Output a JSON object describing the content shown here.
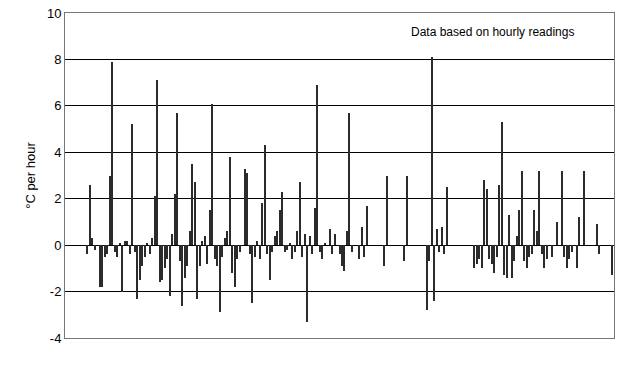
{
  "chart_data": {
    "type": "bar",
    "y_label": "°C per hour",
    "annotation": "Data based on hourly readings",
    "color": "#2b2b2b",
    "grid": true,
    "tick_labels": "y",
    "xlim": [
      0,
      220
    ],
    "ylim": [
      -4,
      10
    ],
    "yticks": [
      -4,
      -2,
      0,
      2,
      4,
      6,
      8,
      10
    ],
    "x": [
      9,
      10,
      11,
      12,
      14,
      15,
      16,
      17,
      18,
      19,
      20,
      21,
      22,
      23,
      24,
      25,
      26,
      27,
      28,
      29,
      30,
      31,
      32,
      33,
      34,
      35,
      36,
      37,
      38,
      39,
      40,
      41,
      42,
      43,
      44,
      45,
      46,
      47,
      48,
      49,
      50,
      51,
      52,
      53,
      54,
      55,
      56,
      57,
      58,
      59,
      60,
      61,
      62,
      63,
      64,
      65,
      66,
      67,
      68,
      69,
      70,
      72,
      73,
      74,
      75,
      76,
      77,
      78,
      79,
      80,
      81,
      82,
      83,
      84,
      85,
      86,
      87,
      88,
      89,
      90,
      91,
      92,
      93,
      94,
      95,
      96,
      97,
      98,
      99,
      100,
      101,
      102,
      103,
      104,
      106,
      107,
      108,
      110,
      111,
      112,
      113,
      114,
      115,
      118,
      119,
      120,
      121,
      128,
      129,
      136,
      137,
      145,
      146,
      147,
      148,
      149,
      150,
      151,
      152,
      153,
      164,
      165,
      166,
      167,
      168,
      169,
      170,
      171,
      172,
      173,
      174,
      175,
      176,
      177,
      178,
      179,
      180,
      181,
      182,
      183,
      184,
      185,
      186,
      187,
      188,
      189,
      190,
      191,
      192,
      193,
      195,
      197,
      199,
      200,
      201,
      202,
      203,
      205,
      206,
      208,
      213,
      214,
      219
    ],
    "values": [
      -0.4,
      2.6,
      0.3,
      -0.2,
      -1.8,
      -1.8,
      -0.5,
      -0.4,
      3.0,
      7.9,
      -0.3,
      -0.5,
      0.1,
      -2.0,
      0.2,
      0.2,
      -0.4,
      5.2,
      -0.3,
      -2.3,
      -1.5,
      -0.9,
      -0.5,
      0.1,
      -0.4,
      0.3,
      2.1,
      7.1,
      -1.6,
      -1.5,
      -1.0,
      -0.6,
      -2.2,
      0.5,
      2.2,
      5.7,
      -0.7,
      -2.6,
      -1.4,
      -0.9,
      0.6,
      3.5,
      2.7,
      -2.3,
      -0.9,
      0.2,
      0.4,
      -0.8,
      1.5,
      6.1,
      -0.6,
      -0.9,
      -2.9,
      -0.5,
      0.3,
      0.6,
      3.8,
      -1.2,
      -1.8,
      -0.6,
      -0.3,
      3.3,
      3.1,
      -0.4,
      -2.5,
      -0.5,
      0.2,
      -0.6,
      1.8,
      4.3,
      -0.4,
      -1.5,
      -0.3,
      0.4,
      0.6,
      1.5,
      2.3,
      -0.3,
      -0.2,
      0.1,
      -0.6,
      -0.3,
      0.6,
      2.7,
      -0.5,
      0.5,
      -3.3,
      0.4,
      -0.4,
      1.6,
      6.9,
      -0.3,
      -0.6,
      0.1,
      0.7,
      -0.4,
      0.5,
      -0.4,
      -0.9,
      -1.1,
      0.6,
      5.7,
      -0.3,
      -0.6,
      0.8,
      -0.5,
      1.7,
      -0.9,
      3.0,
      -0.7,
      3.0,
      -2.8,
      -0.7,
      8.1,
      -2.4,
      0.7,
      -0.3,
      0.8,
      -0.4,
      2.5,
      -1.0,
      -0.8,
      -0.6,
      -1.0,
      2.8,
      2.4,
      -0.6,
      -0.8,
      -1.2,
      -0.5,
      2.6,
      5.3,
      -1.3,
      -1.4,
      1.3,
      -1.4,
      -0.7,
      0.4,
      1.5,
      3.2,
      -0.7,
      -1.0,
      -0.5,
      -0.4,
      1.5,
      0.6,
      3.2,
      -0.4,
      -1.0,
      -0.6,
      -0.5,
      1.0,
      3.2,
      -0.5,
      -1.0,
      -0.6,
      -0.3,
      -1.0,
      1.2,
      3.2,
      0.9,
      -0.4,
      -1.3
    ]
  }
}
